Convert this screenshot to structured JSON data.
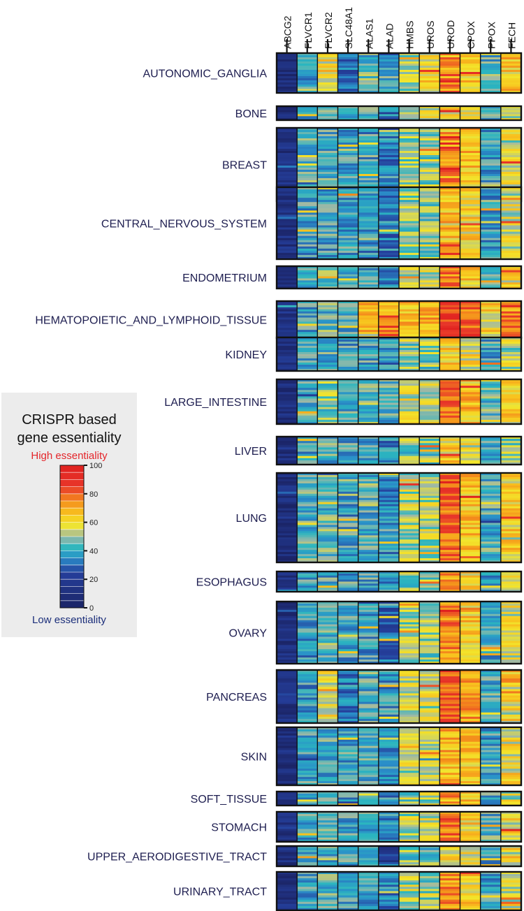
{
  "chart_data": {
    "type": "heatmap",
    "columns": [
      "ABCG2",
      "FLVCR1",
      "FLVCR2",
      "SLC48A1",
      "ALAS1",
      "ALAD",
      "HMBS",
      "UROS",
      "UROD",
      "CPOX",
      "PPOX",
      "FECH"
    ],
    "rows": [
      {
        "label": "AUTONOMIC_GANGLIA",
        "means": [
          8,
          40,
          60,
          30,
          44,
          36,
          52,
          60,
          72,
          66,
          42,
          65
        ]
      },
      {
        "label": "BONE",
        "means": [
          10,
          42,
          50,
          40,
          44,
          32,
          52,
          56,
          60,
          56,
          42,
          55
        ]
      },
      {
        "label": "BREAST",
        "means": [
          12,
          44,
          42,
          40,
          40,
          36,
          50,
          50,
          74,
          66,
          40,
          58
        ]
      },
      {
        "label": "CENTRAL_NERVOUS_SYSTEM",
        "means": [
          12,
          40,
          40,
          40,
          38,
          34,
          50,
          48,
          66,
          62,
          38,
          55
        ]
      },
      {
        "label": "ENDOMETRIUM",
        "means": [
          12,
          42,
          44,
          38,
          40,
          36,
          52,
          54,
          76,
          64,
          42,
          60
        ]
      },
      {
        "label": "HEMATOPOIETIC_AND_LYMPHOID_TISSUE",
        "means": [
          14,
          40,
          44,
          40,
          66,
          72,
          66,
          70,
          88,
          80,
          62,
          78
        ]
      },
      {
        "label": "KIDNEY",
        "means": [
          12,
          40,
          42,
          40,
          40,
          36,
          50,
          48,
          62,
          58,
          40,
          52
        ]
      },
      {
        "label": "LARGE_INTESTINE",
        "means": [
          10,
          42,
          48,
          42,
          46,
          42,
          56,
          56,
          80,
          66,
          46,
          62
        ]
      },
      {
        "label": "LIVER",
        "means": [
          12,
          40,
          42,
          40,
          40,
          36,
          48,
          48,
          62,
          58,
          40,
          50
        ]
      },
      {
        "label": "LUNG",
        "means": [
          10,
          42,
          44,
          40,
          42,
          36,
          52,
          52,
          80,
          66,
          42,
          62
        ]
      },
      {
        "label": "ESOPHAGUS",
        "means": [
          12,
          40,
          42,
          40,
          40,
          38,
          50,
          50,
          72,
          60,
          40,
          56
        ]
      },
      {
        "label": "OVARY",
        "means": [
          10,
          38,
          44,
          40,
          40,
          30,
          52,
          50,
          74,
          64,
          40,
          56
        ]
      },
      {
        "label": "PANCREAS",
        "means": [
          12,
          38,
          58,
          34,
          42,
          38,
          56,
          56,
          82,
          70,
          42,
          60
        ]
      },
      {
        "label": "SKIN",
        "means": [
          10,
          40,
          42,
          40,
          42,
          36,
          52,
          54,
          68,
          64,
          40,
          58
        ]
      },
      {
        "label": "SOFT_TISSUE",
        "means": [
          12,
          40,
          42,
          40,
          42,
          36,
          50,
          52,
          70,
          62,
          40,
          54
        ]
      },
      {
        "label": "STOMACH",
        "means": [
          12,
          40,
          44,
          40,
          42,
          38,
          52,
          54,
          78,
          64,
          42,
          58
        ]
      },
      {
        "label": "UPPER_AERODIGESTIVE_TRACT",
        "means": [
          12,
          40,
          40,
          40,
          38,
          20,
          48,
          46,
          62,
          58,
          40,
          52
        ]
      },
      {
        "label": "URINARY_TRACT",
        "means": [
          12,
          40,
          42,
          40,
          40,
          36,
          52,
          50,
          72,
          62,
          40,
          56
        ]
      }
    ],
    "colorscale": {
      "min": 0,
      "max": 100,
      "ticks": [
        0,
        20,
        40,
        60,
        80,
        100
      ],
      "stops": [
        {
          "v": 0,
          "c": "#1b2466"
        },
        {
          "v": 25,
          "c": "#253f9c"
        },
        {
          "v": 35,
          "c": "#2a8fc9"
        },
        {
          "v": 42,
          "c": "#2bb6bf"
        },
        {
          "v": 50,
          "c": "#9fb8a6"
        },
        {
          "v": 58,
          "c": "#f2e62c"
        },
        {
          "v": 66,
          "c": "#f8c21e"
        },
        {
          "v": 75,
          "c": "#f48c1c"
        },
        {
          "v": 85,
          "c": "#e8372a"
        },
        {
          "v": 100,
          "c": "#e0201f"
        }
      ]
    }
  },
  "legend": {
    "title_line1": "CRISPR based",
    "title_line2": "gene essentiality",
    "high_label": "High essentiality",
    "low_label": "Low essentiality"
  }
}
